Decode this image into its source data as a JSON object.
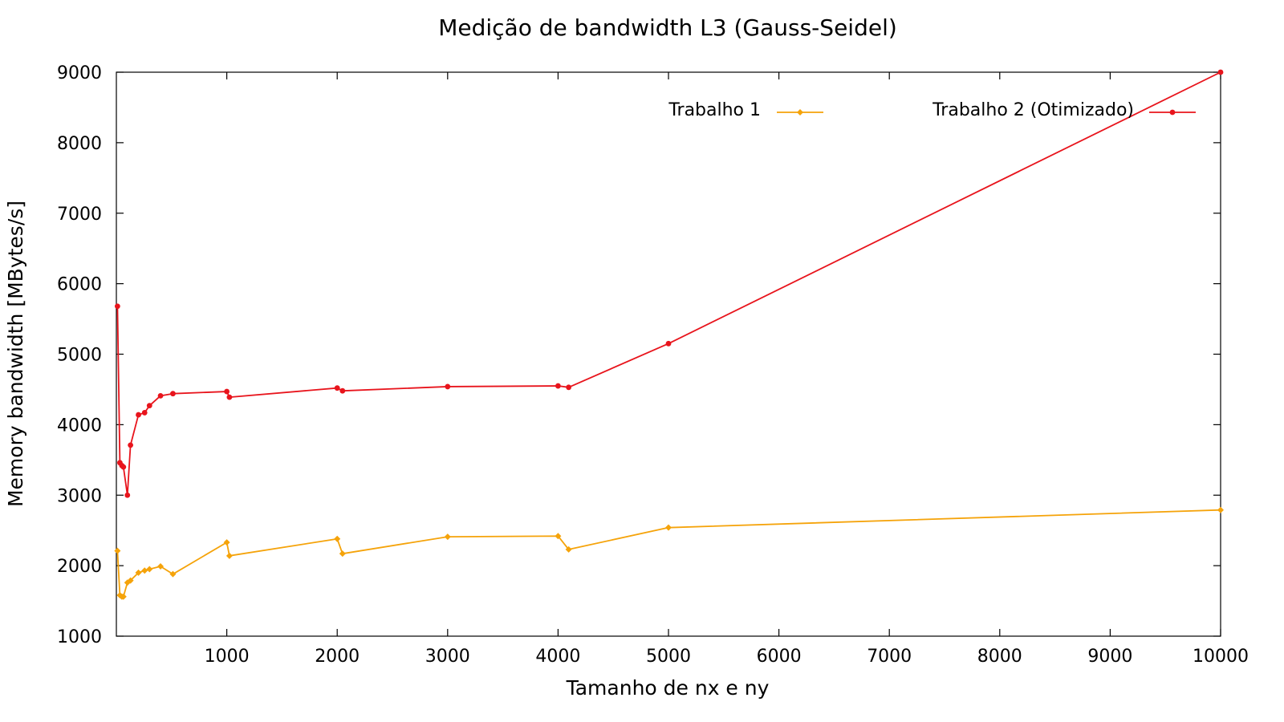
{
  "chart_data": {
    "type": "line",
    "title": "Medição de bandwidth L3 (Gauss-Seidel)",
    "xlabel": "Tamanho de nx e ny",
    "ylabel": "Memory bandwidth [MBytes/s]",
    "xlim": [
      0,
      10000
    ],
    "ylim": [
      1000,
      9000
    ],
    "xticks": [
      1000,
      2000,
      3000,
      4000,
      5000,
      6000,
      7000,
      8000,
      9000,
      10000
    ],
    "yticks": [
      1000,
      2000,
      3000,
      4000,
      5000,
      6000,
      7000,
      8000,
      9000
    ],
    "xtick_labels": [
      "1000",
      "2000",
      "3000",
      "4000",
      "5000",
      "6000",
      "7000",
      "8000",
      "9000",
      "10000"
    ],
    "ytick_labels": [
      "1000",
      "2000",
      "3000",
      "4000",
      "5000",
      "6000",
      "7000",
      "8000",
      "9000"
    ],
    "grid": false,
    "legend_position": "top-right",
    "series": [
      {
        "name": "Trabalho 1",
        "color": "#f5a30a",
        "marker": "diamond",
        "points": [
          [
            10,
            2210
          ],
          [
            32,
            1580
          ],
          [
            50,
            1560
          ],
          [
            64,
            1560
          ],
          [
            100,
            1760
          ],
          [
            128,
            1790
          ],
          [
            200,
            1900
          ],
          [
            256,
            1930
          ],
          [
            300,
            1950
          ],
          [
            400,
            1990
          ],
          [
            512,
            1880
          ],
          [
            1000,
            2330
          ],
          [
            1024,
            2140
          ],
          [
            2000,
            2380
          ],
          [
            2048,
            2170
          ],
          [
            3000,
            2410
          ],
          [
            4000,
            2420
          ],
          [
            4096,
            2230
          ],
          [
            5000,
            2540
          ],
          [
            10000,
            2790
          ]
        ]
      },
      {
        "name": "Trabalho 2 (Otimizado)",
        "color": "#e8141c",
        "marker": "circle",
        "points": [
          [
            10,
            5680
          ],
          [
            32,
            3460
          ],
          [
            50,
            3420
          ],
          [
            64,
            3400
          ],
          [
            100,
            3000
          ],
          [
            128,
            3710
          ],
          [
            200,
            4140
          ],
          [
            256,
            4170
          ],
          [
            300,
            4270
          ],
          [
            400,
            4410
          ],
          [
            512,
            4440
          ],
          [
            1000,
            4470
          ],
          [
            1024,
            4390
          ],
          [
            2000,
            4520
          ],
          [
            2048,
            4480
          ],
          [
            3000,
            4540
          ],
          [
            4000,
            4550
          ],
          [
            4096,
            4530
          ],
          [
            5000,
            5150
          ],
          [
            10000,
            9000
          ]
        ]
      }
    ]
  }
}
